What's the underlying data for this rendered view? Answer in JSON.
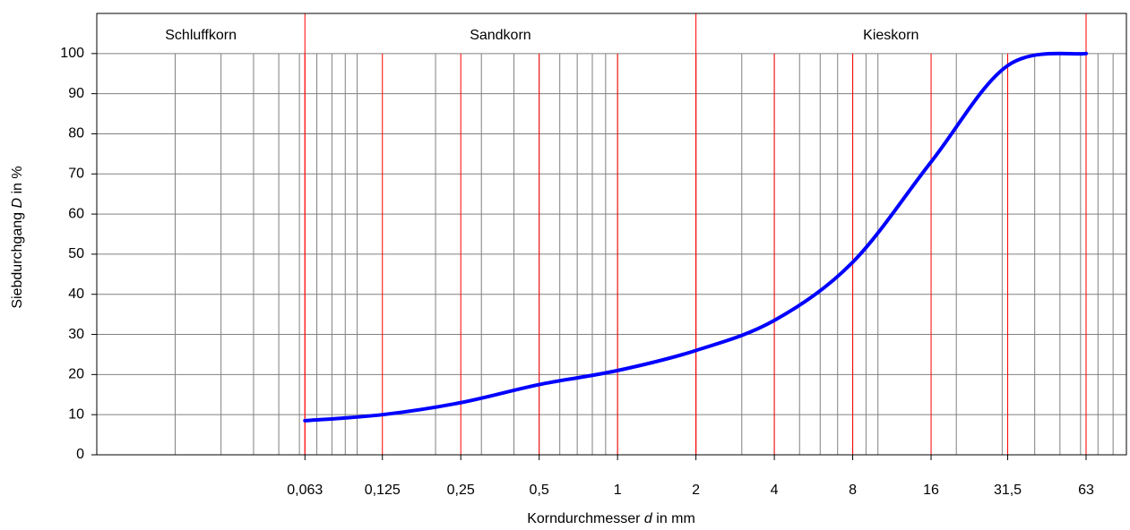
{
  "chart_data": {
    "type": "line",
    "x_label": [
      "Korndurchmesser ",
      "d",
      " in mm"
    ],
    "y_label": [
      "Siebdurchgang ",
      "D",
      " in %"
    ],
    "zones": [
      "Schluffkorn",
      "Sandkorn",
      "Kieskorn"
    ],
    "zone_bounds": [
      0.063,
      2,
      63
    ],
    "x": [
      0.063,
      0.125,
      0.25,
      0.5,
      1,
      2,
      4,
      8,
      16,
      31.5,
      63
    ],
    "series": [
      {
        "color": "#0000ff",
        "values": [
          8.5,
          10,
          13,
          17.5,
          21,
          26,
          33.5,
          48,
          73,
          97,
          100
        ]
      }
    ],
    "xlim": [
      0.01,
      90
    ],
    "x_log": true,
    "minor_grid": true,
    "xticks": [
      {
        "value": 0.063,
        "label": "0,063"
      },
      {
        "value": 0.125,
        "label": "0,125"
      },
      {
        "value": 0.25,
        "label": "0,25"
      },
      {
        "value": 0.5,
        "label": "0,5"
      },
      1,
      2,
      4,
      8,
      16,
      {
        "value": 31.5,
        "label": "31,5"
      },
      63
    ],
    "ylim": [
      0,
      110
    ],
    "yticks": [
      0,
      10,
      20,
      30,
      40,
      50,
      60,
      70,
      80,
      90,
      100
    ],
    "grid_color": "#808080",
    "xtick_color": "#ff0000"
  }
}
